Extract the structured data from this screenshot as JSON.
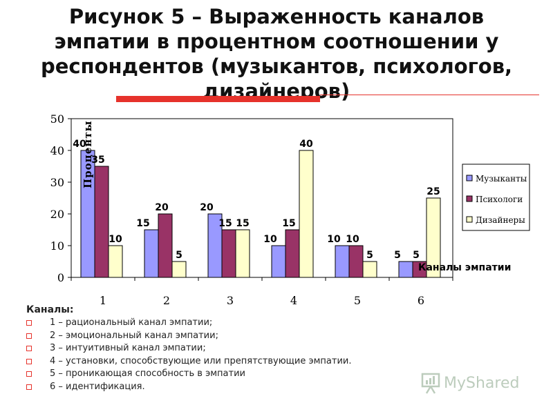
{
  "title": "Рисунок 5 – Выраженность каналов эмпатии в процентном соотношении у респондентов (музыкантов, психологов, дизайнеров)",
  "legend_heading": "Каналы:",
  "channels": [
    "1 – рациональный канал эмпатии;",
    "2 – эмоциональный канал эмпатии;",
    "3 – интуитивный канал эмпатии;",
    "4 – установки, способствующие или препятствующие эмпатии.",
    "5 – проникающая способность в эмпатии",
    "6 – идентификация."
  ],
  "watermark": "MyShared",
  "colors": {
    "accent_red": "#e6322b",
    "series_1": "#9999ff",
    "series_2": "#993366",
    "series_3": "#ffffcc"
  },
  "chart_data": {
    "type": "bar",
    "categories": [
      "1",
      "2",
      "3",
      "4",
      "5",
      "6"
    ],
    "series": [
      {
        "name": "Музыканты",
        "values": [
          40,
          15,
          20,
          10,
          10,
          5
        ]
      },
      {
        "name": "Психологи",
        "values": [
          35,
          20,
          15,
          15,
          10,
          5
        ]
      },
      {
        "name": "Дизайнеры",
        "values": [
          10,
          5,
          15,
          40,
          5,
          25
        ]
      }
    ],
    "ylabel": "Проценты",
    "xlabel": "Каналы эмпатии",
    "ylim": [
      0,
      50
    ],
    "yticks": [
      "0",
      "10",
      "20",
      "30",
      "40",
      "50"
    ],
    "grid": false,
    "legend_position": "right"
  }
}
